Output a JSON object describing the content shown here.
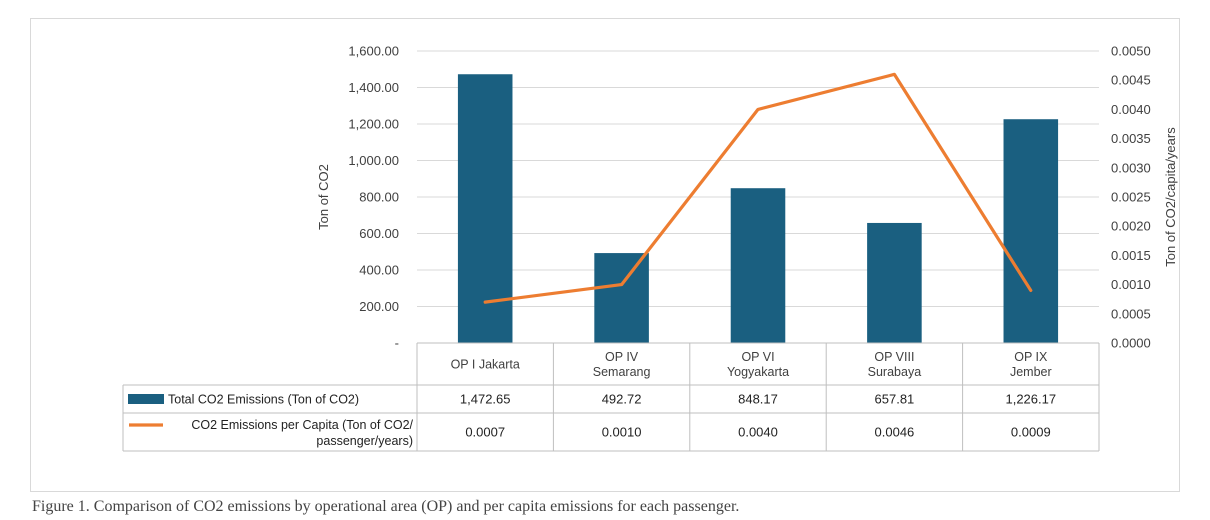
{
  "chart_data": {
    "type": "bar",
    "categories": [
      [
        "OP I Jakarta"
      ],
      [
        "OP IV",
        "Semarang"
      ],
      [
        "OP VI",
        "Yogyakarta"
      ],
      [
        "OP VIII",
        "Surabaya"
      ],
      [
        "OP IX",
        "Jember"
      ]
    ],
    "series": [
      {
        "name": "Total CO2 Emissions (Ton of CO2)",
        "type": "bar",
        "axis": "left",
        "color": "#1a5f80",
        "values": [
          1472.65,
          492.72,
          848.17,
          657.81,
          1226.17
        ],
        "labels": [
          "1,472.65",
          "492.72",
          "848.17",
          "657.81",
          "1,226.17"
        ]
      },
      {
        "name": "CO2 Emissions per Capita  (Ton of CO2/ passenger/years)",
        "legend_lines": [
          "CO2 Emissions per Capita  (Ton of CO2/",
          "passenger/years)"
        ],
        "type": "line",
        "axis": "right",
        "color": "#ed7d31",
        "values": [
          0.0007,
          0.001,
          0.004,
          0.0046,
          0.0009
        ],
        "labels": [
          "0.0007",
          "0.0010",
          "0.0040",
          "0.0046",
          "0.0009"
        ]
      }
    ],
    "y_left": {
      "label": "Ton of CO2",
      "ylim": [
        0,
        1600
      ],
      "ticks": [
        "-",
        "200.00",
        "400.00",
        "600.00",
        "800.00",
        "1,000.00",
        "1,200.00",
        "1,400.00",
        "1,600.00"
      ]
    },
    "y_right": {
      "label": "Ton of CO2/capita/years",
      "ylim": [
        0,
        0.005
      ],
      "ticks": [
        "0.0000",
        "0.0005",
        "0.0010",
        "0.0015",
        "0.0020",
        "0.0025",
        "0.0030",
        "0.0035",
        "0.0040",
        "0.0045",
        "0.0050"
      ]
    },
    "grid": true,
    "legend": "data-table"
  },
  "caption": "Figure 1. Comparison of CO2 emissions by operational area (OP) and per capita emissions for each passenger."
}
